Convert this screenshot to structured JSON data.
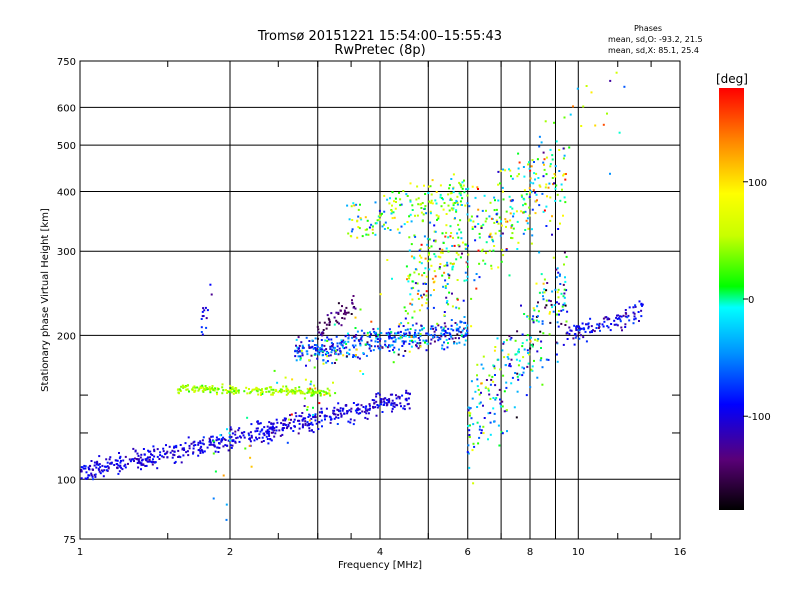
{
  "title": "Tromsø 20151221 15:54:00–15:55:43",
  "subtitle": "RwPretec (8p)",
  "info": {
    "heading": "Phases",
    "line1": "mean, sd,O: -93.2, 21.5",
    "line2": "mean, sd,X:  85.1, 25.4"
  },
  "colorbar": {
    "label": "[deg]",
    "range": [
      -180,
      180
    ],
    "ticks": [
      {
        "value": 100,
        "label": "100"
      },
      {
        "value": 0,
        "label": "0"
      },
      {
        "value": -100,
        "label": "-100"
      }
    ]
  },
  "chart_data": {
    "type": "scatter",
    "title": "Tromsø 20151221 15:54:00–15:55:43",
    "subtitle": "RwPretec (8p)",
    "xlabel": "Frequency [MHz]",
    "ylabel": "Stationary phase Virtual Height [km]",
    "xscale": "log",
    "yscale": "log",
    "xlim": [
      1,
      16
    ],
    "ylim": [
      75,
      750
    ],
    "xticks": [
      1,
      2,
      4,
      6,
      8,
      10,
      16
    ],
    "yticks": [
      75,
      100,
      200,
      300,
      400,
      500,
      600,
      750
    ],
    "minor_xticks": [
      3,
      5,
      7,
      9
    ],
    "minor_yticks": [
      125,
      150
    ],
    "grid": true,
    "color_scale": "phase, rainbow from black (-180) to red (+180) degrees",
    "traces": [
      {
        "name": "low ordinary trace",
        "freq_range": [
          1.0,
          4.6
        ],
        "height_range": [
          103,
          148
        ],
        "mean_phase": -100
      },
      {
        "name": "upper trace",
        "freq_range": [
          1.55,
          3.2
        ],
        "height_range": [
          155,
          148
        ],
        "mean_phase": 45
      },
      {
        "name": "F cusp band",
        "freq_range": [
          2.7,
          6.0
        ],
        "height_range": [
          190,
          205
        ],
        "mean_phase": -80
      },
      {
        "name": "high echoes",
        "freq_range": [
          3.4,
          9.5
        ],
        "height_range": [
          300,
          450
        ],
        "mean_phase": 20
      },
      {
        "name": "far range echoes",
        "freq_range": [
          9.5,
          13.5
        ],
        "height_range": [
          200,
          225
        ],
        "mean_phase": -95
      }
    ]
  }
}
